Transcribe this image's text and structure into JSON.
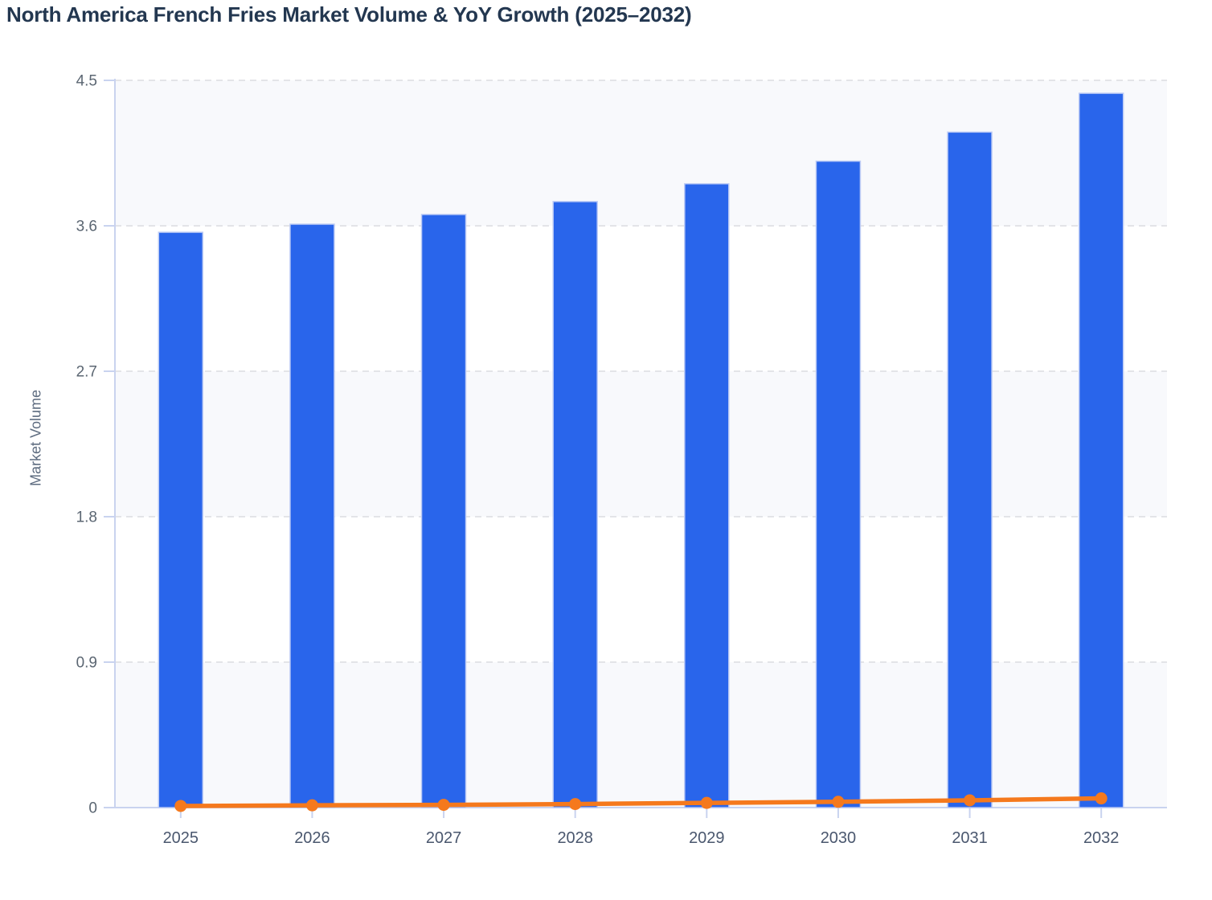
{
  "page": {
    "title": "North America French Fries Market Volume & YoY Growth (2025–2032)"
  },
  "chart_data": {
    "type": "bar+line",
    "title": "North America French Fries Market Volume & YoY Growth (2025–2032)",
    "categories": [
      "2025",
      "2026",
      "2027",
      "2028",
      "2029",
      "2030",
      "2031",
      "2032"
    ],
    "series": [
      {
        "name": "Market Volume",
        "type": "bar",
        "axis": "left",
        "values": [
          3.56,
          3.61,
          3.67,
          3.75,
          3.86,
          4.0,
          4.18,
          4.42
        ]
      },
      {
        "name": "YoY Growth",
        "type": "line",
        "axis": "left",
        "values": [
          0.01,
          0.014,
          0.017,
          0.022,
          0.029,
          0.036,
          0.045,
          0.057
        ]
      }
    ],
    "xlabel": "",
    "ylabel": "Market Volume",
    "ylim": [
      0,
      4.5
    ],
    "yticks": [
      0,
      0.9,
      1.8,
      2.7,
      3.6,
      4.5
    ],
    "ytick_labels": [
      "0",
      "0.9",
      "1.8",
      "2.7",
      "3.6",
      "4.5"
    ],
    "grid": "horizontal-dashed",
    "legend": "none",
    "background_bands": "alternating-horizontal"
  },
  "colors": {
    "bar": "#2965eb",
    "bar_border": "#bccbf5",
    "line": "#f5791d",
    "band": "#f8f9fc",
    "grid": "#e3e4e8",
    "axis": "#c9d3ef",
    "title_text": "#233750",
    "ytick_text": "#5b6672",
    "xtick_text": "#4a576e",
    "axis_title_text": "#5e6c80",
    "background": "#ffffff"
  }
}
